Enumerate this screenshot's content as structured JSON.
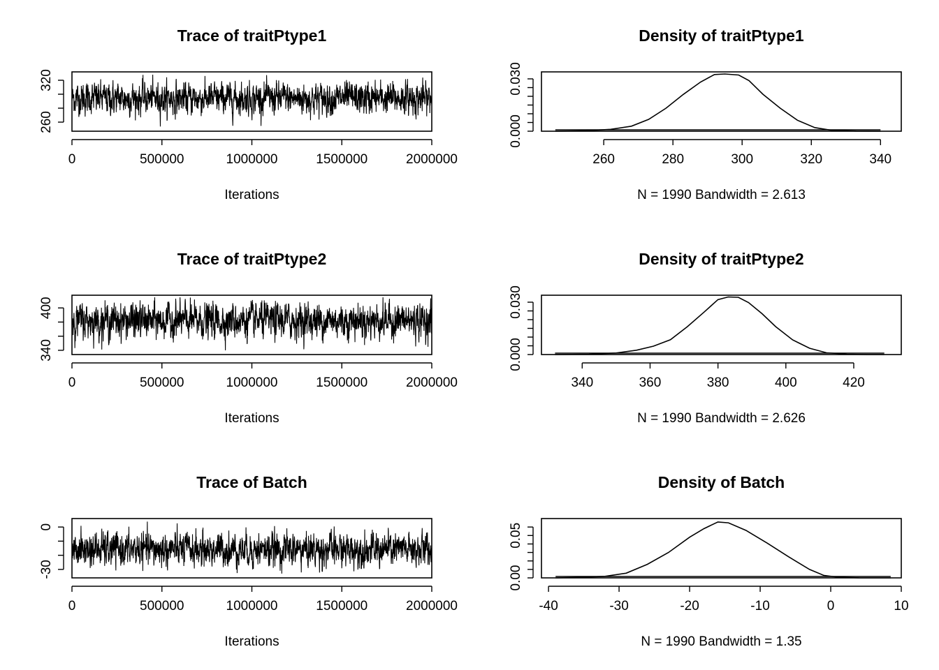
{
  "chart_data": [
    {
      "type": "line",
      "title": "Trace of traitPtype1",
      "xlabel": "Iterations",
      "ylabel": "",
      "xlim": [
        0,
        2000000
      ],
      "ylim": [
        247,
        332
      ],
      "xticks": [
        0,
        500000,
        1000000,
        1500000,
        2000000
      ],
      "xtick_labels": [
        "0",
        "500000",
        "1000000",
        "1500000",
        "2000000"
      ],
      "yticks": [
        260,
        280,
        300,
        320
      ],
      "ytick_labels": [
        "260",
        "",
        "",
        "320"
      ],
      "series": [
        {
          "n": 1990,
          "mean": 294,
          "sd": 11,
          "min": 253,
          "max": 328,
          "color": "#000000"
        }
      ]
    },
    {
      "type": "line",
      "title": "Density of traitPtype1",
      "xlabel": "N = 1990   Bandwidth = 2.613",
      "ylabel": "",
      "xlim": [
        242,
        346
      ],
      "ylim": [
        0,
        0.034
      ],
      "xticks": [
        260,
        280,
        300,
        320,
        340
      ],
      "xtick_labels": [
        "260",
        "280",
        "300",
        "320",
        "340"
      ],
      "yticks": [
        0.0,
        0.005,
        0.01,
        0.015,
        0.02,
        0.025,
        0.03
      ],
      "ytick_labels": [
        "0.000",
        "",
        "",
        "",
        "",
        "",
        "0.030"
      ],
      "series": [
        {
          "x": [
            246,
            255,
            262,
            268,
            273,
            278,
            283,
            288,
            292,
            295,
            299,
            302,
            306,
            311,
            316,
            321,
            326,
            333,
            340
          ],
          "y": [
            0.0,
            0.0003,
            0.0011,
            0.0029,
            0.0068,
            0.0132,
            0.0211,
            0.0282,
            0.0325,
            0.0328,
            0.0322,
            0.029,
            0.0212,
            0.0132,
            0.0063,
            0.0021,
            0.0005,
            0.0001,
            0.0
          ],
          "color": "#000000",
          "rug_from": 246,
          "rug_to": 340
        }
      ]
    },
    {
      "type": "line",
      "title": "Trace of traitPtype2",
      "xlabel": "Iterations",
      "ylabel": "",
      "xlim": [
        0,
        2000000
      ],
      "ylim": [
        334,
        418
      ],
      "xticks": [
        0,
        500000,
        1000000,
        1500000,
        2000000
      ],
      "xtick_labels": [
        "0",
        "500000",
        "1000000",
        "1500000",
        "2000000"
      ],
      "yticks": [
        340,
        360,
        380,
        400
      ],
      "ytick_labels": [
        "340",
        "",
        "",
        "400"
      ],
      "series": [
        {
          "n": 1990,
          "mean": 382,
          "sd": 12,
          "min": 340,
          "max": 415,
          "color": "#000000"
        }
      ]
    },
    {
      "type": "line",
      "title": "Density of traitPtype2",
      "xlabel": "N = 1990   Bandwidth = 2.626",
      "ylabel": "",
      "xlim": [
        328,
        434
      ],
      "ylim": [
        0,
        0.034
      ],
      "xticks": [
        340,
        360,
        380,
        400,
        420
      ],
      "xtick_labels": [
        "340",
        "360",
        "380",
        "400",
        "420"
      ],
      "yticks": [
        0.0,
        0.005,
        0.01,
        0.015,
        0.02,
        0.025,
        0.03
      ],
      "ytick_labels": [
        "0.000",
        "",
        "",
        "",
        "",
        "",
        "0.030"
      ],
      "series": [
        {
          "x": [
            332,
            342,
            350,
            356,
            361,
            366,
            371,
            376,
            380,
            383,
            386,
            389,
            393,
            397,
            402,
            407,
            412,
            418,
            424,
            429
          ],
          "y": [
            0.0,
            0.0002,
            0.0009,
            0.0025,
            0.0048,
            0.0085,
            0.016,
            0.0245,
            0.0315,
            0.033,
            0.0328,
            0.0298,
            0.0234,
            0.016,
            0.0084,
            0.0036,
            0.001,
            0.0002,
            0.0,
            0.0
          ],
          "color": "#000000",
          "rug_from": 332,
          "rug_to": 429
        }
      ]
    },
    {
      "type": "line",
      "title": "Trace of Batch",
      "xlabel": "Iterations",
      "ylabel": "",
      "xlim": [
        0,
        2000000
      ],
      "ylim": [
        -36,
        6
      ],
      "xticks": [
        0,
        500000,
        1000000,
        1500000,
        2000000
      ],
      "xtick_labels": [
        "0",
        "500000",
        "1000000",
        "1500000",
        "2000000"
      ],
      "yticks": [
        -30,
        -20,
        -10,
        0
      ],
      "ytick_labels": [
        "-30",
        "",
        "",
        "0"
      ],
      "series": [
        {
          "n": 1990,
          "mean": -16,
          "sd": 5.8,
          "min": -33,
          "max": 4,
          "color": "#000000"
        }
      ]
    },
    {
      "type": "line",
      "title": "Density of Batch",
      "xlabel": "N = 1990   Bandwidth = 1.35",
      "ylabel": "",
      "xlim": [
        -41,
        10
      ],
      "ylim": [
        0,
        0.07
      ],
      "xticks": [
        -40,
        -30,
        -20,
        -10,
        0,
        10
      ],
      "xtick_labels": [
        "-40",
        "-30",
        "-20",
        "-10",
        "0",
        "10"
      ],
      "yticks": [
        0.0,
        0.01,
        0.02,
        0.03,
        0.04,
        0.05,
        0.06
      ],
      "ytick_labels": [
        "0.00",
        "",
        "",
        "",
        "",
        "0.05",
        ""
      ],
      "series": [
        {
          "x": [
            -39,
            -35,
            -32,
            -29,
            -26,
            -23,
            -20,
            -18,
            -16,
            -14.5,
            -12,
            -9,
            -6,
            -3,
            -1,
            1,
            4,
            8.5
          ],
          "y": [
            0.0,
            0.0007,
            0.0018,
            0.0055,
            0.016,
            0.03,
            0.048,
            0.058,
            0.066,
            0.065,
            0.056,
            0.041,
            0.025,
            0.01,
            0.003,
            0.0008,
            0.0001,
            0.0
          ],
          "color": "#000000",
          "rug_from": -39,
          "rug_to": 8.5
        }
      ]
    }
  ]
}
